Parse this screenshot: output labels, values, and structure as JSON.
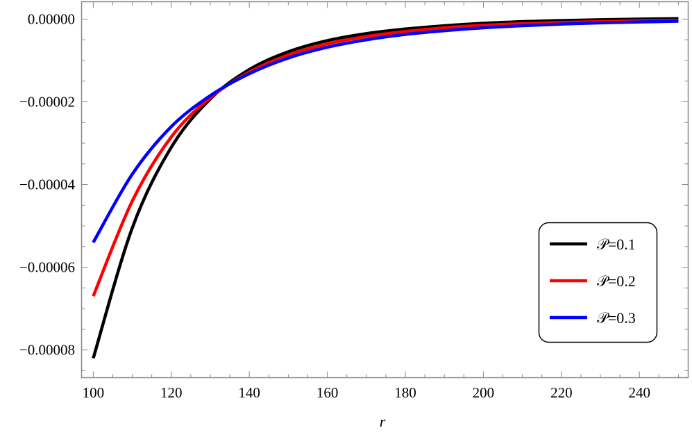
{
  "chart_data": {
    "type": "line",
    "title": "",
    "xlabel": "r",
    "ylabel": "",
    "xlim": [
      97,
      252.5
    ],
    "ylim": [
      -8.67e-05,
      4.2e-06
    ],
    "x_ticks": [
      100,
      120,
      140,
      160,
      180,
      200,
      220,
      240
    ],
    "x_tick_labels": [
      "100",
      "120",
      "140",
      "160",
      "180",
      "200",
      "220",
      "240"
    ],
    "y_ticks": [
      0,
      -2e-05,
      -4e-05,
      -6e-05,
      -8e-05
    ],
    "y_tick_labels": [
      "0.00000",
      "−0.00002",
      "−0.00004",
      "−0.00006",
      "−0.00008"
    ],
    "grid": false,
    "legend_position": "bottom-right",
    "x": [
      100,
      110,
      120,
      130,
      140,
      150,
      160,
      170,
      180,
      190,
      200,
      210,
      220,
      230,
      240,
      250
    ],
    "series": [
      {
        "name": "𝒫=0.1",
        "color": "#000000",
        "values": [
          -8.2e-05,
          -5.05e-05,
          -3.1e-05,
          -1.93e-05,
          -1.22e-05,
          -7.9e-06,
          -5.2e-06,
          -3.5e-06,
          -2.4e-06,
          -1.6e-06,
          -1e-06,
          -6e-07,
          -3.5e-07,
          -1.5e-07,
          0,
          1e-07
        ]
      },
      {
        "name": "𝒫=0.2",
        "color": "#ff0000",
        "values": [
          -6.7e-05,
          -4.4e-05,
          -2.85e-05,
          -1.9e-05,
          -1.28e-05,
          -8.7e-06,
          -6e-06,
          -4.2e-06,
          -3e-06,
          -2.1e-06,
          -1.5e-06,
          -1.1e-06,
          -8e-07,
          -6e-07,
          -4e-07,
          -3e-07
        ]
      },
      {
        "name": "𝒫=0.3",
        "color": "#0000ff",
        "values": [
          -5.4e-05,
          -3.75e-05,
          -2.6e-05,
          -1.85e-05,
          -1.32e-05,
          -9.4e-06,
          -6.8e-06,
          -5e-06,
          -3.7e-06,
          -2.8e-06,
          -2.1e-06,
          -1.6e-06,
          -1.2e-06,
          -9e-07,
          -7e-07,
          -5e-07
        ]
      }
    ]
  }
}
